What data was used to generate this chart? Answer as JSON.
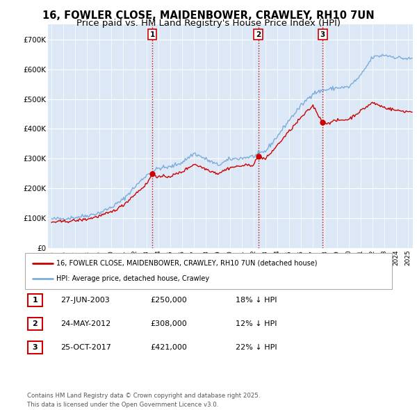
{
  "title": "16, FOWLER CLOSE, MAIDENBOWER, CRAWLEY, RH10 7UN",
  "subtitle": "Price paid vs. HM Land Registry's House Price Index (HPI)",
  "legend_label_red": "16, FOWLER CLOSE, MAIDENBOWER, CRAWLEY, RH10 7UN (detached house)",
  "legend_label_blue": "HPI: Average price, detached house, Crawley",
  "footer": "Contains HM Land Registry data © Crown copyright and database right 2025.\nThis data is licensed under the Open Government Licence v3.0.",
  "transactions": [
    {
      "num": 1,
      "date": "27-JUN-2003",
      "price": "£250,000",
      "pct": "18% ↓ HPI"
    },
    {
      "num": 2,
      "date": "24-MAY-2012",
      "price": "£308,000",
      "pct": "12% ↓ HPI"
    },
    {
      "num": 3,
      "date": "25-OCT-2017",
      "price": "£421,000",
      "pct": "22% ↓ HPI"
    }
  ],
  "transaction_dates_dec": [
    2003.486,
    2012.392,
    2017.814
  ],
  "transaction_prices": [
    250000,
    308000,
    421000
  ],
  "ylim": [
    0,
    750000
  ],
  "yticks": [
    0,
    100000,
    200000,
    300000,
    400000,
    500000,
    600000,
    700000
  ],
  "red_color": "#cc0000",
  "blue_color": "#7aabda",
  "background_color": "#dce8f5",
  "grid_color": "#ffffff",
  "vline_color": "#cc0000",
  "title_fontsize": 10.5,
  "subtitle_fontsize": 9.5,
  "hpi_anchors": {
    "1995.0": 97000,
    "1996.0": 99000,
    "1997.0": 103000,
    "1998.0": 109000,
    "1999.0": 118000,
    "2000.0": 136000,
    "2001.0": 162000,
    "2002.0": 205000,
    "2003.0": 245000,
    "2004.0": 268000,
    "2005.0": 272000,
    "2006.0": 288000,
    "2007.0": 318000,
    "2008.0": 298000,
    "2009.0": 278000,
    "2010.0": 298000,
    "2011.0": 302000,
    "2012.0": 308000,
    "2013.0": 325000,
    "2014.0": 375000,
    "2015.0": 430000,
    "2016.0": 478000,
    "2017.0": 520000,
    "2018.0": 530000,
    "2019.0": 538000,
    "2020.0": 540000,
    "2021.0": 578000,
    "2022.0": 640000,
    "2023.0": 648000,
    "2024.0": 640000,
    "2025.0": 635000
  },
  "red_anchors": {
    "1995.0": 87000,
    "1996.0": 89000,
    "1997.0": 92000,
    "1998.0": 97000,
    "1999.0": 107000,
    "2000.0": 120000,
    "2001.0": 143000,
    "2002.0": 180000,
    "2003.0": 215000,
    "2003.486": 250000,
    "2004.0": 238000,
    "2005.0": 241000,
    "2006.0": 256000,
    "2007.0": 282000,
    "2008.0": 265000,
    "2009.0": 250000,
    "2010.0": 270000,
    "2011.0": 276000,
    "2012.0": 280000,
    "2012.392": 308000,
    "2013.0": 298000,
    "2014.0": 345000,
    "2015.0": 392000,
    "2016.0": 438000,
    "2017.0": 478000,
    "2017.814": 421000,
    "2018.0": 418000,
    "2019.0": 428000,
    "2020.0": 432000,
    "2021.0": 460000,
    "2022.0": 488000,
    "2023.0": 472000,
    "2024.0": 462000,
    "2025.0": 458000
  }
}
